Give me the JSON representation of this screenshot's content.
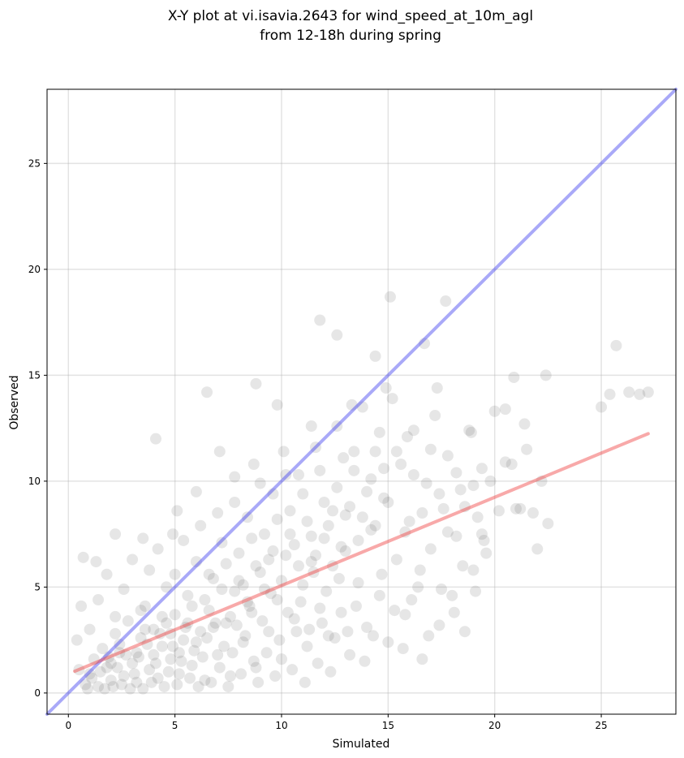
{
  "chart_data": {
    "type": "scatter",
    "title": "X-Y plot at vi.isavia.2643 for wind_speed_at_10m_agl",
    "subtitle": "from 12-18h during spring",
    "xlabel": "Simulated",
    "ylabel": "Observed",
    "xlim": [
      -1.0,
      28.5
    ],
    "ylim": [
      -1.0,
      28.5
    ],
    "xticks": [
      0,
      5,
      10,
      15,
      20,
      25
    ],
    "yticks": [
      0,
      5,
      10,
      15,
      20,
      25
    ],
    "grid": true,
    "point_color": "#404040",
    "point_opacity": 0.13,
    "series": [
      {
        "points": [
          [
            0.8,
            0.4
          ],
          [
            1.0,
            0.9
          ],
          [
            1.2,
            1.6
          ],
          [
            1.4,
            0.3
          ],
          [
            1.6,
            2.1
          ],
          [
            1.8,
            1.2
          ],
          [
            2.0,
            0.6
          ],
          [
            2.2,
            2.8
          ],
          [
            2.4,
            1.9
          ],
          [
            2.6,
            0.8
          ],
          [
            2.8,
            3.4
          ],
          [
            3.0,
            1.4
          ],
          [
            3.2,
            0.5
          ],
          [
            3.4,
            2.6
          ],
          [
            3.6,
            4.1
          ],
          [
            3.8,
            1.1
          ],
          [
            4.0,
            3.0
          ],
          [
            4.2,
            0.7
          ],
          [
            4.4,
            2.2
          ],
          [
            4.6,
            5.0
          ],
          [
            4.8,
            1.6
          ],
          [
            5.0,
            3.7
          ],
          [
            5.2,
            0.9
          ],
          [
            5.4,
            2.5
          ],
          [
            5.6,
            4.6
          ],
          [
            5.8,
            1.3
          ],
          [
            6.0,
            6.2
          ],
          [
            6.2,
            2.9
          ],
          [
            6.4,
            0.6
          ],
          [
            6.6,
            3.9
          ],
          [
            6.8,
            5.4
          ],
          [
            7.0,
            1.8
          ],
          [
            7.2,
            7.1
          ],
          [
            7.4,
            3.3
          ],
          [
            7.6,
            0.8
          ],
          [
            7.8,
            4.8
          ],
          [
            8.0,
            6.6
          ],
          [
            8.2,
            2.4
          ],
          [
            8.4,
            8.3
          ],
          [
            8.6,
            3.8
          ],
          [
            8.8,
            1.2
          ],
          [
            9.0,
            5.7
          ],
          [
            9.2,
            7.5
          ],
          [
            9.4,
            2.9
          ],
          [
            9.6,
            9.4
          ],
          [
            9.8,
            4.4
          ],
          [
            10.0,
            1.6
          ],
          [
            10.2,
            6.5
          ],
          [
            10.4,
            8.6
          ],
          [
            10.6,
            3.5
          ],
          [
            10.8,
            10.3
          ],
          [
            11.0,
            5.1
          ],
          [
            11.2,
            2.2
          ],
          [
            11.4,
            7.4
          ],
          [
            11.6,
            11.6
          ],
          [
            11.8,
            4.0
          ],
          [
            12.0,
            9.0
          ],
          [
            12.2,
            2.7
          ],
          [
            12.4,
            6.0
          ],
          [
            12.6,
            12.6
          ],
          [
            12.8,
            3.8
          ],
          [
            13.0,
            8.4
          ],
          [
            13.2,
            1.8
          ],
          [
            13.4,
            10.5
          ],
          [
            13.6,
            5.2
          ],
          [
            13.8,
            13.5
          ],
          [
            14.0,
            3.1
          ],
          [
            14.2,
            7.7
          ],
          [
            14.4,
            11.4
          ],
          [
            14.6,
            4.6
          ],
          [
            14.8,
            9.2
          ],
          [
            15.0,
            2.4
          ],
          [
            15.2,
            13.9
          ],
          [
            15.4,
            6.3
          ],
          [
            15.6,
            10.8
          ],
          [
            15.8,
            3.7
          ],
          [
            16.0,
            8.1
          ],
          [
            16.2,
            12.4
          ],
          [
            16.4,
            5.0
          ],
          [
            16.6,
            1.6
          ],
          [
            16.8,
            9.9
          ],
          [
            17.0,
            6.8
          ],
          [
            17.2,
            13.1
          ],
          [
            17.4,
            3.2
          ],
          [
            17.6,
            8.7
          ],
          [
            17.8,
            11.2
          ],
          [
            18.0,
            4.6
          ],
          [
            18.2,
            7.4
          ],
          [
            18.4,
            9.6
          ],
          [
            18.6,
            2.9
          ],
          [
            18.8,
            12.4
          ],
          [
            19.0,
            5.8
          ],
          [
            19.2,
            8.3
          ],
          [
            19.4,
            10.6
          ],
          [
            19.6,
            6.6
          ],
          [
            20.0,
            13.3
          ],
          [
            20.5,
            10.9
          ],
          [
            21.0,
            8.7
          ],
          [
            21.5,
            11.5
          ],
          [
            22.0,
            6.8
          ],
          [
            22.5,
            8.0
          ],
          [
            25.0,
            13.5
          ],
          [
            25.4,
            14.1
          ],
          [
            25.7,
            16.4
          ],
          [
            26.3,
            14.2
          ],
          [
            26.8,
            14.1
          ],
          [
            27.2,
            14.2
          ],
          [
            17.7,
            18.5
          ],
          [
            15.1,
            18.7
          ],
          [
            12.6,
            16.9
          ],
          [
            11.8,
            17.6
          ],
          [
            14.4,
            15.9
          ],
          [
            16.7,
            16.5
          ],
          [
            22.4,
            15.0
          ],
          [
            20.9,
            14.9
          ],
          [
            4.1,
            12.0
          ],
          [
            6.5,
            14.2
          ],
          [
            8.8,
            14.6
          ],
          [
            9.8,
            13.6
          ],
          [
            0.4,
            2.5
          ],
          [
            0.7,
            6.4
          ],
          [
            1.3,
            6.2
          ],
          [
            0.6,
            4.1
          ],
          [
            2.2,
            7.5
          ],
          [
            3.5,
            7.3
          ],
          [
            4.9,
            7.5
          ],
          [
            5.1,
            8.6
          ],
          [
            6.0,
            9.5
          ],
          [
            7.1,
            11.4
          ],
          [
            7.8,
            10.2
          ],
          [
            8.7,
            10.8
          ],
          [
            10.1,
            11.4
          ],
          [
            11.4,
            12.6
          ],
          [
            12.9,
            11.1
          ],
          [
            13.3,
            13.6
          ],
          [
            14.9,
            14.4
          ],
          [
            15.9,
            12.1
          ],
          [
            17.3,
            14.4
          ],
          [
            18.9,
            12.3
          ],
          [
            20.5,
            13.4
          ],
          [
            21.4,
            12.7
          ],
          [
            0.5,
            1.1
          ],
          [
            0.9,
            0.2
          ],
          [
            1.1,
            0.7
          ],
          [
            1.5,
            1.0
          ],
          [
            1.7,
            0.2
          ],
          [
            1.9,
            1.7
          ],
          [
            2.1,
            0.3
          ],
          [
            2.3,
            1.2
          ],
          [
            2.5,
            0.4
          ],
          [
            2.7,
            1.8
          ],
          [
            2.9,
            0.2
          ],
          [
            3.1,
            0.9
          ],
          [
            3.3,
            1.7
          ],
          [
            3.5,
            0.2
          ],
          [
            3.7,
            2.3
          ],
          [
            3.9,
            0.5
          ],
          [
            4.1,
            1.4
          ],
          [
            4.3,
            2.8
          ],
          [
            4.5,
            0.3
          ],
          [
            4.7,
            1.0
          ],
          [
            4.9,
            2.2
          ],
          [
            5.1,
            0.4
          ],
          [
            5.3,
            1.5
          ],
          [
            5.5,
            3.1
          ],
          [
            5.7,
            0.7
          ],
          [
            5.9,
            2.0
          ],
          [
            6.1,
            0.3
          ],
          [
            6.3,
            1.7
          ],
          [
            6.5,
            2.6
          ],
          [
            6.7,
            0.5
          ],
          [
            6.9,
            3.3
          ],
          [
            7.1,
            1.2
          ],
          [
            7.3,
            2.2
          ],
          [
            7.5,
            0.3
          ],
          [
            7.7,
            1.9
          ],
          [
            7.9,
            3.2
          ],
          [
            8.1,
            0.9
          ],
          [
            8.3,
            2.7
          ],
          [
            8.5,
            4.1
          ],
          [
            8.7,
            1.5
          ],
          [
            8.9,
            0.5
          ],
          [
            9.1,
            3.4
          ],
          [
            9.3,
            1.9
          ],
          [
            9.5,
            4.7
          ],
          [
            9.7,
            0.8
          ],
          [
            9.9,
            2.5
          ],
          [
            10.3,
            3.8
          ],
          [
            10.5,
            1.1
          ],
          [
            10.7,
            2.9
          ],
          [
            10.9,
            4.3
          ],
          [
            11.1,
            0.5
          ],
          [
            11.3,
            3.0
          ],
          [
            11.5,
            5.7
          ],
          [
            11.7,
            1.4
          ],
          [
            11.9,
            3.3
          ],
          [
            12.1,
            4.8
          ],
          [
            12.3,
            1.0
          ],
          [
            12.5,
            2.6
          ],
          [
            12.7,
            5.4
          ],
          [
            13.1,
            2.9
          ],
          [
            13.5,
            4.1
          ],
          [
            13.9,
            1.5
          ],
          [
            14.3,
            2.7
          ],
          [
            14.7,
            5.6
          ],
          [
            15.3,
            3.9
          ],
          [
            15.7,
            2.1
          ],
          [
            16.1,
            4.4
          ],
          [
            16.5,
            5.8
          ],
          [
            16.9,
            2.7
          ],
          [
            17.5,
            4.9
          ],
          [
            18.1,
            3.8
          ],
          [
            18.5,
            6.0
          ],
          [
            19.1,
            4.8
          ],
          [
            19.5,
            7.2
          ],
          [
            1.0,
            3.0
          ],
          [
            1.4,
            4.4
          ],
          [
            1.8,
            5.6
          ],
          [
            2.2,
            3.6
          ],
          [
            2.6,
            4.9
          ],
          [
            3.0,
            6.3
          ],
          [
            3.4,
            3.9
          ],
          [
            3.8,
            5.8
          ],
          [
            4.2,
            6.8
          ],
          [
            4.6,
            3.3
          ],
          [
            5.0,
            5.6
          ],
          [
            5.4,
            7.2
          ],
          [
            5.8,
            4.1
          ],
          [
            6.2,
            7.9
          ],
          [
            6.6,
            5.6
          ],
          [
            7.0,
            8.5
          ],
          [
            7.4,
            6.1
          ],
          [
            7.8,
            9.0
          ],
          [
            8.2,
            5.1
          ],
          [
            8.6,
            7.3
          ],
          [
            9.0,
            9.9
          ],
          [
            9.4,
            6.3
          ],
          [
            9.8,
            8.2
          ],
          [
            10.2,
            10.3
          ],
          [
            10.6,
            7.0
          ],
          [
            11.0,
            9.4
          ],
          [
            11.4,
            6.2
          ],
          [
            11.8,
            10.5
          ],
          [
            12.2,
            7.9
          ],
          [
            12.6,
            9.7
          ],
          [
            13.0,
            6.7
          ],
          [
            13.4,
            11.4
          ],
          [
            13.8,
            8.3
          ],
          [
            14.2,
            10.1
          ],
          [
            14.6,
            12.3
          ],
          [
            15.0,
            9.0
          ],
          [
            15.4,
            11.4
          ],
          [
            15.8,
            7.6
          ],
          [
            16.2,
            10.3
          ],
          [
            16.6,
            8.5
          ],
          [
            17.0,
            11.5
          ],
          [
            17.4,
            9.4
          ],
          [
            17.8,
            7.6
          ],
          [
            18.2,
            10.4
          ],
          [
            18.6,
            8.8
          ],
          [
            19.0,
            9.8
          ],
          [
            19.4,
            7.5
          ],
          [
            19.8,
            10.0
          ],
          [
            20.2,
            8.6
          ],
          [
            20.8,
            10.8
          ],
          [
            21.2,
            8.7
          ],
          [
            21.8,
            8.5
          ],
          [
            22.2,
            10.0
          ],
          [
            2.0,
            1.4
          ],
          [
            2.4,
            2.3
          ],
          [
            3.2,
            1.9
          ],
          [
            3.6,
            3.0
          ],
          [
            4.0,
            1.8
          ],
          [
            4.4,
            3.6
          ],
          [
            4.8,
            2.8
          ],
          [
            5.2,
            1.9
          ],
          [
            5.6,
            3.3
          ],
          [
            6.0,
            2.4
          ],
          [
            6.4,
            4.4
          ],
          [
            6.8,
            3.1
          ],
          [
            7.2,
            4.9
          ],
          [
            7.6,
            3.6
          ],
          [
            8.0,
            5.3
          ],
          [
            8.4,
            4.3
          ],
          [
            8.8,
            6.0
          ],
          [
            9.2,
            4.9
          ],
          [
            9.6,
            6.7
          ],
          [
            10.0,
            5.3
          ],
          [
            10.4,
            7.5
          ],
          [
            10.8,
            6.0
          ],
          [
            11.2,
            8.1
          ],
          [
            11.6,
            6.5
          ],
          [
            12.0,
            7.3
          ],
          [
            12.4,
            8.6
          ],
          [
            12.8,
            6.9
          ],
          [
            13.2,
            8.8
          ],
          [
            13.6,
            7.2
          ],
          [
            14.0,
            9.5
          ],
          [
            14.4,
            7.9
          ],
          [
            14.8,
            10.6
          ]
        ]
      }
    ],
    "reference_lines": [
      {
        "kind": "identity",
        "color": "#4040f0",
        "slope": 1.0,
        "intercept": 0.0
      },
      {
        "kind": "regression",
        "color": "#f04040",
        "slope": 0.417,
        "intercept": 0.9,
        "x_range": [
          0.3,
          27.2
        ]
      }
    ]
  }
}
